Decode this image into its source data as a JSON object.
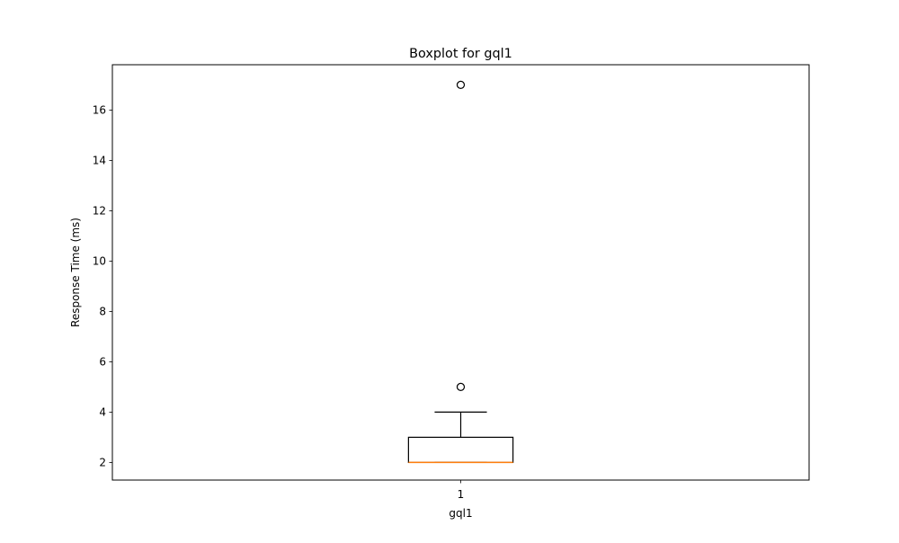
{
  "chart_data": {
    "type": "box",
    "title": "Boxplot for gql1",
    "xlabel": "gql1",
    "ylabel": "Response Time (ms)",
    "categories": [
      "1"
    ],
    "ylim": [
      1.3,
      17.8
    ],
    "yticks": [
      2,
      4,
      6,
      8,
      10,
      12,
      14,
      16
    ],
    "grid": false,
    "boxes": [
      {
        "category": "1",
        "whisker_low": 2,
        "q1": 2,
        "median": 2,
        "q3": 3,
        "whisker_high": 4,
        "outliers": [
          5,
          17
        ]
      }
    ],
    "colors": {
      "box": "#000000",
      "median": "#ff7f0e",
      "background": "#ffffff"
    }
  }
}
